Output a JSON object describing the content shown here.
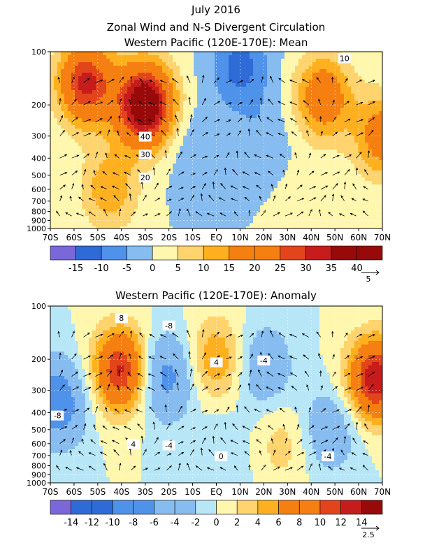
{
  "titles": {
    "line1": "July 2016",
    "line2": "Zonal Wind and N-S Divergent Circulation",
    "line3": "Western Pacific (120E-170E): Mean",
    "line4": "Western Pacific (120E-170E): Anomaly"
  },
  "colors": {
    "neg_extreme": "#7B68D8",
    "neg_dark": "#2F6BD6",
    "neg_mid": "#4F92EA",
    "neg_light": "#86BCF0",
    "neg_pale": "#B7E6F7",
    "pos_pale": "#FFF7AE",
    "pos_light": "#FFD36E",
    "pos_mid": "#FFB020",
    "pos_orange": "#F57F10",
    "pos_red": "#E2451C",
    "pos_dark": "#C61C1C",
    "pos_darkest": "#980A0A",
    "arrow": "#000000",
    "contour": "#000000"
  },
  "chart_data": [
    {
      "type": "heatmap",
      "title": "Western Pacific (120E-170E): Mean",
      "xlabel": "",
      "ylabel": "",
      "x_ticks": [
        "70S",
        "60S",
        "50S",
        "40S",
        "30S",
        "20S",
        "10S",
        "EQ",
        "10N",
        "20N",
        "30N",
        "40N",
        "50N",
        "60N",
        "70N"
      ],
      "x_range": [
        -70,
        70
      ],
      "y_ticks": [
        100,
        200,
        300,
        400,
        500,
        600,
        700,
        800,
        900,
        1000
      ],
      "y_range": [
        1000,
        100
      ],
      "y_scale": "log",
      "color_levels": [
        -20,
        -15,
        -10,
        -5,
        0,
        5,
        10,
        15,
        20,
        25,
        30,
        35,
        40,
        45
      ],
      "colorbar_labels": [
        "-15",
        "-10",
        "-5",
        "0",
        "5",
        "10",
        "15",
        "20",
        "25",
        "30",
        "35",
        "40"
      ],
      "contour_labels": [
        {
          "text": "10",
          "lat": 54,
          "p": 110
        },
        {
          "text": "40",
          "lat": -30,
          "p": 305
        },
        {
          "text": "30",
          "lat": -30,
          "p": 385
        },
        {
          "text": "20",
          "lat": -30,
          "p": 520
        }
      ],
      "vector_reference": "5",
      "grid": true,
      "centers": [
        {
          "lat": -30,
          "p": 200,
          "value": 44
        },
        {
          "lat": -55,
          "p": 150,
          "value": 32
        },
        {
          "lat": -45,
          "p": 600,
          "value": 14
        },
        {
          "lat": -10,
          "p": 350,
          "value": -4
        },
        {
          "lat": 10,
          "p": 120,
          "value": -12
        },
        {
          "lat": 20,
          "p": 300,
          "value": -4
        },
        {
          "lat": 45,
          "p": 180,
          "value": 22
        },
        {
          "lat": 70,
          "p": 300,
          "value": 20
        },
        {
          "lat": 40,
          "p": 800,
          "value": 5
        }
      ]
    },
    {
      "type": "heatmap",
      "title": "Western Pacific (120E-170E): Anomaly",
      "xlabel": "",
      "ylabel": "",
      "x_ticks": [
        "70S",
        "60S",
        "50S",
        "40S",
        "30S",
        "20S",
        "10S",
        "EQ",
        "10N",
        "20N",
        "30N",
        "40N",
        "50N",
        "60N",
        "70N"
      ],
      "x_range": [
        -70,
        70
      ],
      "y_ticks": [
        100,
        200,
        300,
        400,
        500,
        600,
        700,
        800,
        900,
        1000
      ],
      "y_range": [
        1000,
        100
      ],
      "y_scale": "log",
      "color_levels": [
        -16,
        -14,
        -12,
        -10,
        -8,
        -6,
        -4,
        -2,
        0,
        2,
        4,
        6,
        8,
        10,
        12,
        14,
        16
      ],
      "colorbar_labels": [
        "-14",
        "-12",
        "-10",
        "-8",
        "-6",
        "-4",
        "-2",
        "0",
        "2",
        "4",
        "6",
        "8",
        "10",
        "12",
        "14"
      ],
      "contour_labels": [
        {
          "text": "8",
          "lat": -40,
          "p": 118
        },
        {
          "text": "-8",
          "lat": -20,
          "p": 130
        },
        {
          "text": "4",
          "lat": 0,
          "p": 210
        },
        {
          "text": "-4",
          "lat": 20,
          "p": 205
        },
        {
          "text": "-8",
          "lat": -67,
          "p": 420
        },
        {
          "text": "4",
          "lat": -35,
          "p": 610
        },
        {
          "text": "-4",
          "lat": -20,
          "p": 620
        },
        {
          "text": "0",
          "lat": 2,
          "p": 715
        },
        {
          "text": "-4",
          "lat": 47,
          "p": 715
        }
      ],
      "vector_reference": "2.5",
      "grid": true,
      "centers": [
        {
          "lat": -40,
          "p": 230,
          "value": 13
        },
        {
          "lat": -67,
          "p": 350,
          "value": -9
        },
        {
          "lat": -22,
          "p": 250,
          "value": -8
        },
        {
          "lat": 0,
          "p": 200,
          "value": 6
        },
        {
          "lat": 20,
          "p": 220,
          "value": -5
        },
        {
          "lat": 28,
          "p": 600,
          "value": 3
        },
        {
          "lat": 48,
          "p": 500,
          "value": -5
        },
        {
          "lat": 67,
          "p": 260,
          "value": 14
        },
        {
          "lat": 2,
          "p": 700,
          "value": -2
        }
      ]
    }
  ]
}
